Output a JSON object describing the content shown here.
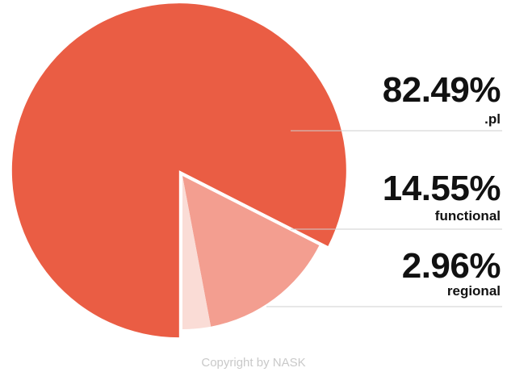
{
  "chart_data": {
    "type": "pie",
    "slices": [
      {
        "label": ".pl",
        "value": 82.49,
        "display": "82.49%",
        "color": "#EA5D44"
      },
      {
        "label": "functional",
        "value": 14.55,
        "display": "14.55%",
        "color": "#F39E90"
      },
      {
        "label": "regional",
        "value": 2.96,
        "display": "2.96%",
        "color": "#FADCD6"
      }
    ],
    "exploded_slices": [
      ".pl"
    ],
    "legend_placement": "right"
  },
  "footer": {
    "copyright": "Copyright by NASK"
  },
  "colors": {
    "leader_line": "#CFCFCF",
    "text": "#111111",
    "copyright": "#C9C9C9"
  }
}
